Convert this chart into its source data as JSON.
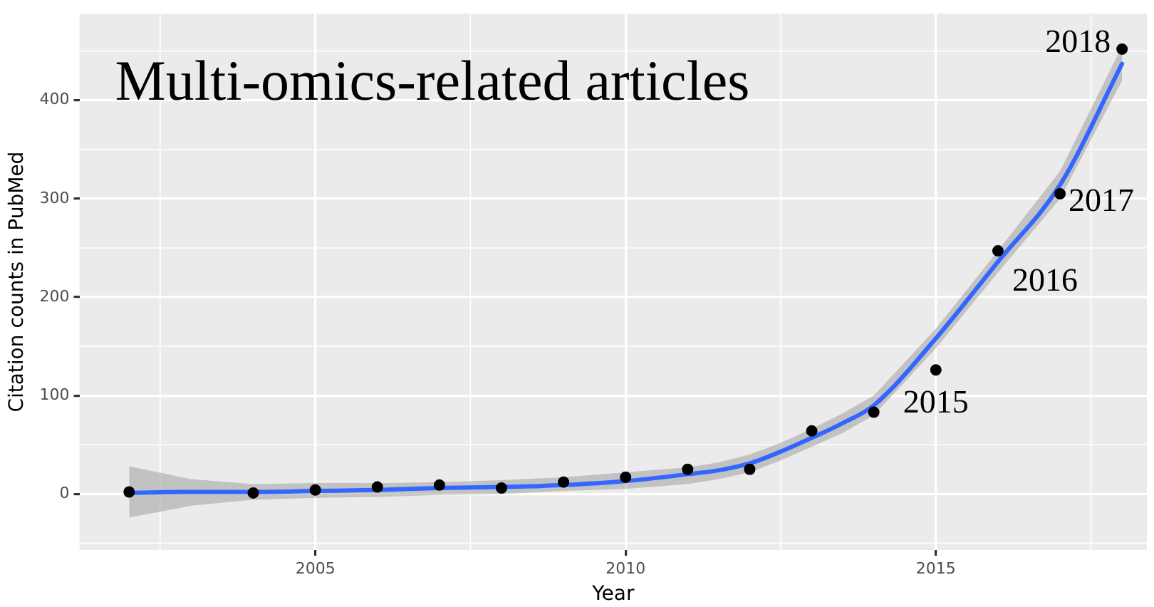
{
  "chart_data": {
    "type": "scatter",
    "title": "Multi-omics-related articles",
    "xlabel": "Year",
    "ylabel": "Citation counts in PubMed",
    "xlim": [
      2001.2,
      2018.4
    ],
    "xticks": [
      2005,
      2010,
      2015
    ],
    "ylim": [
      -57,
      488
    ],
    "yticks": [
      0,
      100,
      200,
      300,
      400
    ],
    "grid": true,
    "series": [
      {
        "type": "line",
        "color": "#3366ff",
        "x": [
          2002,
          2003,
          2004,
          2005,
          2006,
          2007,
          2008,
          2009,
          2010,
          2011,
          2011.5,
          2012,
          2012.5,
          2013,
          2013.5,
          2014,
          2015,
          2016,
          2017,
          2018
        ],
        "values": [
          1,
          2,
          2,
          3,
          4,
          6,
          7,
          9,
          13,
          20,
          24,
          31,
          43,
          57,
          72,
          90,
          158,
          236,
          314,
          437
        ],
        "lower": [
          -24,
          -12,
          -6,
          -4,
          -3,
          -1,
          0,
          3,
          5,
          10,
          15,
          22,
          34,
          48,
          62,
          80,
          148,
          225,
          300,
          420
        ],
        "upper": [
          28,
          15,
          10,
          11,
          11,
          12,
          14,
          17,
          22,
          27,
          32,
          40,
          52,
          66,
          82,
          100,
          168,
          247,
          328,
          455
        ]
      },
      {
        "type": "scatter",
        "color": "#000000",
        "marker": "circle",
        "x": [
          2002,
          2004,
          2005,
          2006,
          2007,
          2008,
          2009,
          2010,
          2011,
          2012,
          2013,
          2014,
          2015,
          2016,
          2017,
          2018
        ],
        "values": [
          2,
          1,
          4,
          7,
          9,
          6,
          12,
          17,
          25,
          25,
          64,
          83,
          126,
          247,
          305,
          452
        ]
      }
    ],
    "annotations": [
      {
        "text": "2015",
        "x": 2015,
        "y": 126
      },
      {
        "text": "2016",
        "x": 2016,
        "y": 247
      },
      {
        "text": "2017",
        "x": 2017,
        "y": 305
      },
      {
        "text": "2018",
        "x": 2018,
        "y": 452
      }
    ]
  }
}
